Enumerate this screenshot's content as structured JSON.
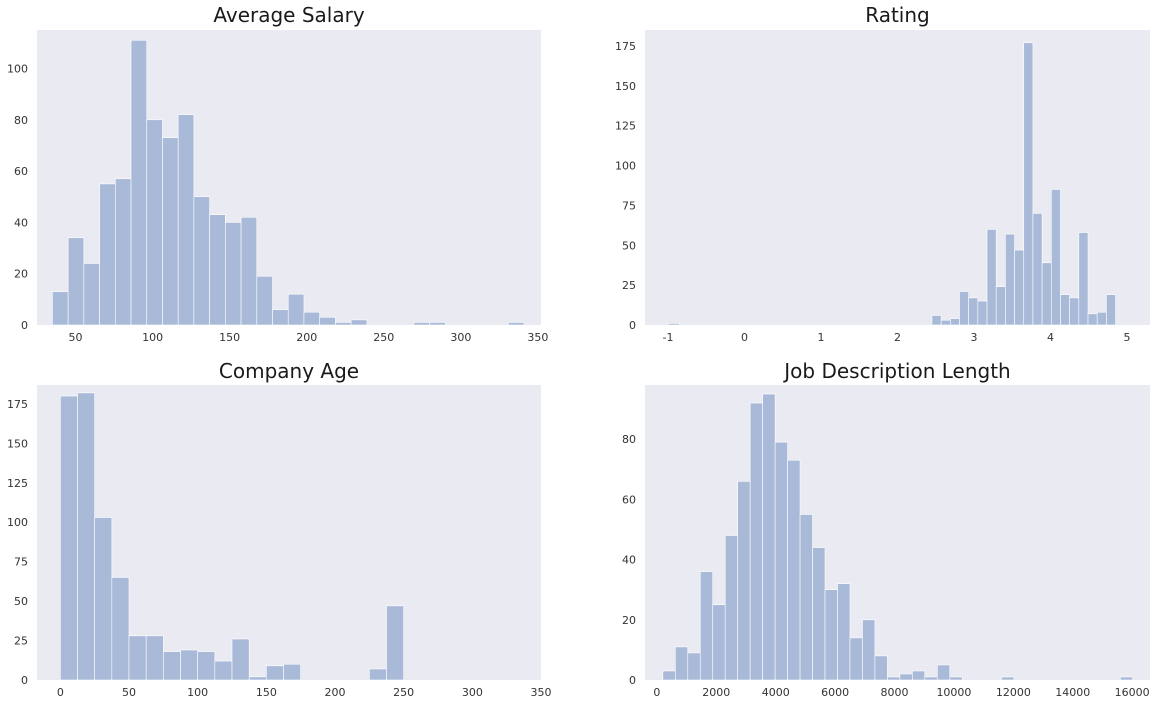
{
  "style": {
    "bar_color": "#a9b9d8",
    "plot_background": "#eaeaf2",
    "grid": false
  },
  "chart_data": [
    {
      "type": "bar",
      "title": "Average Salary",
      "xlabel": "",
      "ylabel": "",
      "xlim": [
        25,
        352
      ],
      "ylim": [
        0,
        115
      ],
      "xticks": [
        50,
        100,
        150,
        200,
        250,
        300,
        350
      ],
      "yticks": [
        0,
        20,
        40,
        60,
        80,
        100
      ],
      "bins": [
        {
          "x0": 35,
          "x1": 45.2,
          "count": 13
        },
        {
          "x0": 45.2,
          "x1": 55.4,
          "count": 34
        },
        {
          "x0": 55.4,
          "x1": 65.6,
          "count": 24
        },
        {
          "x0": 65.6,
          "x1": 75.8,
          "count": 55
        },
        {
          "x0": 75.8,
          "x1": 86,
          "count": 57
        },
        {
          "x0": 86,
          "x1": 96.2,
          "count": 111
        },
        {
          "x0": 96.2,
          "x1": 106.4,
          "count": 80
        },
        {
          "x0": 106.4,
          "x1": 116.6,
          "count": 73
        },
        {
          "x0": 116.6,
          "x1": 126.8,
          "count": 82
        },
        {
          "x0": 126.8,
          "x1": 137,
          "count": 50
        },
        {
          "x0": 137,
          "x1": 147.2,
          "count": 43
        },
        {
          "x0": 147.2,
          "x1": 157.4,
          "count": 40
        },
        {
          "x0": 157.4,
          "x1": 167.6,
          "count": 42
        },
        {
          "x0": 167.6,
          "x1": 177.8,
          "count": 19
        },
        {
          "x0": 177.8,
          "x1": 188,
          "count": 6
        },
        {
          "x0": 188,
          "x1": 198.2,
          "count": 12
        },
        {
          "x0": 198.2,
          "x1": 208.4,
          "count": 5
        },
        {
          "x0": 208.4,
          "x1": 218.6,
          "count": 3
        },
        {
          "x0": 218.6,
          "x1": 228.8,
          "count": 1
        },
        {
          "x0": 228.8,
          "x1": 239,
          "count": 2
        },
        {
          "x0": 239,
          "x1": 249.2,
          "count": 0
        },
        {
          "x0": 249.2,
          "x1": 259.4,
          "count": 0
        },
        {
          "x0": 259.4,
          "x1": 269.6,
          "count": 0
        },
        {
          "x0": 269.6,
          "x1": 279.8,
          "count": 1
        },
        {
          "x0": 279.8,
          "x1": 290,
          "count": 1
        },
        {
          "x0": 290,
          "x1": 300.2,
          "count": 0
        },
        {
          "x0": 300.2,
          "x1": 310.4,
          "count": 0
        },
        {
          "x0": 310.4,
          "x1": 320.6,
          "count": 0
        },
        {
          "x0": 320.6,
          "x1": 330.8,
          "count": 0
        },
        {
          "x0": 330.8,
          "x1": 341,
          "count": 1
        }
      ]
    },
    {
      "type": "bar",
      "title": "Rating",
      "xlabel": "",
      "ylabel": "",
      "xlim": [
        -1.3,
        5.3
      ],
      "ylim": [
        0,
        185
      ],
      "xticks": [
        -1,
        0,
        1,
        2,
        3,
        4,
        5
      ],
      "yticks": [
        0,
        25,
        50,
        75,
        100,
        125,
        150,
        175
      ],
      "bins": [
        {
          "x0": -1,
          "x1": -0.85,
          "count": 1
        },
        {
          "x0": 2.45,
          "x1": 2.57,
          "count": 6
        },
        {
          "x0": 2.57,
          "x1": 2.69,
          "count": 3
        },
        {
          "x0": 2.69,
          "x1": 2.81,
          "count": 4
        },
        {
          "x0": 2.81,
          "x1": 2.93,
          "count": 21
        },
        {
          "x0": 2.93,
          "x1": 3.05,
          "count": 17
        },
        {
          "x0": 3.05,
          "x1": 3.17,
          "count": 15
        },
        {
          "x0": 3.17,
          "x1": 3.29,
          "count": 60
        },
        {
          "x0": 3.29,
          "x1": 3.41,
          "count": 24
        },
        {
          "x0": 3.41,
          "x1": 3.53,
          "count": 57
        },
        {
          "x0": 3.53,
          "x1": 3.65,
          "count": 47
        },
        {
          "x0": 3.65,
          "x1": 3.77,
          "count": 177
        },
        {
          "x0": 3.77,
          "x1": 3.89,
          "count": 70
        },
        {
          "x0": 3.89,
          "x1": 4.01,
          "count": 39
        },
        {
          "x0": 4.01,
          "x1": 4.13,
          "count": 85
        },
        {
          "x0": 4.13,
          "x1": 4.25,
          "count": 19
        },
        {
          "x0": 4.25,
          "x1": 4.37,
          "count": 17
        },
        {
          "x0": 4.37,
          "x1": 4.49,
          "count": 58
        },
        {
          "x0": 4.49,
          "x1": 4.61,
          "count": 7
        },
        {
          "x0": 4.61,
          "x1": 4.73,
          "count": 8
        },
        {
          "x0": 4.73,
          "x1": 4.85,
          "count": 19
        }
      ]
    },
    {
      "type": "bar",
      "title": "Company Age",
      "xlabel": "",
      "ylabel": "",
      "xlim": [
        -17,
        350
      ],
      "ylim": [
        0,
        187
      ],
      "xticks": [
        0,
        50,
        100,
        150,
        200,
        250,
        300,
        350
      ],
      "yticks": [
        0,
        25,
        50,
        75,
        100,
        125,
        150,
        175
      ],
      "bins": [
        {
          "x0": 0,
          "x1": 12.5,
          "count": 180
        },
        {
          "x0": 12.5,
          "x1": 25,
          "count": 182
        },
        {
          "x0": 25,
          "x1": 37.5,
          "count": 103
        },
        {
          "x0": 37.5,
          "x1": 50,
          "count": 65
        },
        {
          "x0": 50,
          "x1": 62.5,
          "count": 28
        },
        {
          "x0": 62.5,
          "x1": 75,
          "count": 28
        },
        {
          "x0": 75,
          "x1": 87.5,
          "count": 18
        },
        {
          "x0": 87.5,
          "x1": 100,
          "count": 19
        },
        {
          "x0": 100,
          "x1": 112.5,
          "count": 18
        },
        {
          "x0": 112.5,
          "x1": 125,
          "count": 12
        },
        {
          "x0": 125,
          "x1": 137.5,
          "count": 26
        },
        {
          "x0": 137.5,
          "x1": 150,
          "count": 2
        },
        {
          "x0": 150,
          "x1": 162.5,
          "count": 9
        },
        {
          "x0": 162.5,
          "x1": 175,
          "count": 10
        },
        {
          "x0": 175,
          "x1": 187.5,
          "count": 0
        },
        {
          "x0": 187.5,
          "x1": 200,
          "count": 0
        },
        {
          "x0": 200,
          "x1": 212.5,
          "count": 0
        },
        {
          "x0": 212.5,
          "x1": 225,
          "count": 0
        },
        {
          "x0": 225,
          "x1": 237.5,
          "count": 7
        },
        {
          "x0": 237.5,
          "x1": 250,
          "count": 47
        }
      ]
    },
    {
      "type": "bar",
      "title": "Job Description Length",
      "xlabel": "",
      "ylabel": "",
      "xlim": [
        -400,
        16600
      ],
      "ylim": [
        0,
        98
      ],
      "xticks": [
        0,
        2000,
        4000,
        6000,
        8000,
        10000,
        12000,
        14000,
        16000
      ],
      "yticks": [
        0,
        20,
        40,
        60,
        80
      ],
      "bins": [
        {
          "x0": 200,
          "x1": 620,
          "count": 3
        },
        {
          "x0": 620,
          "x1": 1040,
          "count": 11
        },
        {
          "x0": 1040,
          "x1": 1460,
          "count": 9
        },
        {
          "x0": 1460,
          "x1": 1880,
          "count": 36
        },
        {
          "x0": 1880,
          "x1": 2300,
          "count": 25
        },
        {
          "x0": 2300,
          "x1": 2720,
          "count": 48
        },
        {
          "x0": 2720,
          "x1": 3140,
          "count": 66
        },
        {
          "x0": 3140,
          "x1": 3560,
          "count": 92
        },
        {
          "x0": 3560,
          "x1": 3980,
          "count": 95
        },
        {
          "x0": 3980,
          "x1": 4400,
          "count": 79
        },
        {
          "x0": 4400,
          "x1": 4820,
          "count": 73
        },
        {
          "x0": 4820,
          "x1": 5240,
          "count": 55
        },
        {
          "x0": 5240,
          "x1": 5660,
          "count": 44
        },
        {
          "x0": 5660,
          "x1": 6080,
          "count": 30
        },
        {
          "x0": 6080,
          "x1": 6500,
          "count": 32
        },
        {
          "x0": 6500,
          "x1": 6920,
          "count": 14
        },
        {
          "x0": 6920,
          "x1": 7340,
          "count": 20
        },
        {
          "x0": 7340,
          "x1": 7760,
          "count": 8
        },
        {
          "x0": 7760,
          "x1": 8180,
          "count": 1
        },
        {
          "x0": 8180,
          "x1": 8600,
          "count": 2
        },
        {
          "x0": 8600,
          "x1": 9020,
          "count": 3
        },
        {
          "x0": 9020,
          "x1": 9440,
          "count": 1
        },
        {
          "x0": 9440,
          "x1": 9860,
          "count": 5
        },
        {
          "x0": 9860,
          "x1": 10280,
          "count": 1
        },
        {
          "x0": 11600,
          "x1": 12020,
          "count": 1
        },
        {
          "x0": 15600,
          "x1": 16020,
          "count": 1
        }
      ]
    }
  ]
}
